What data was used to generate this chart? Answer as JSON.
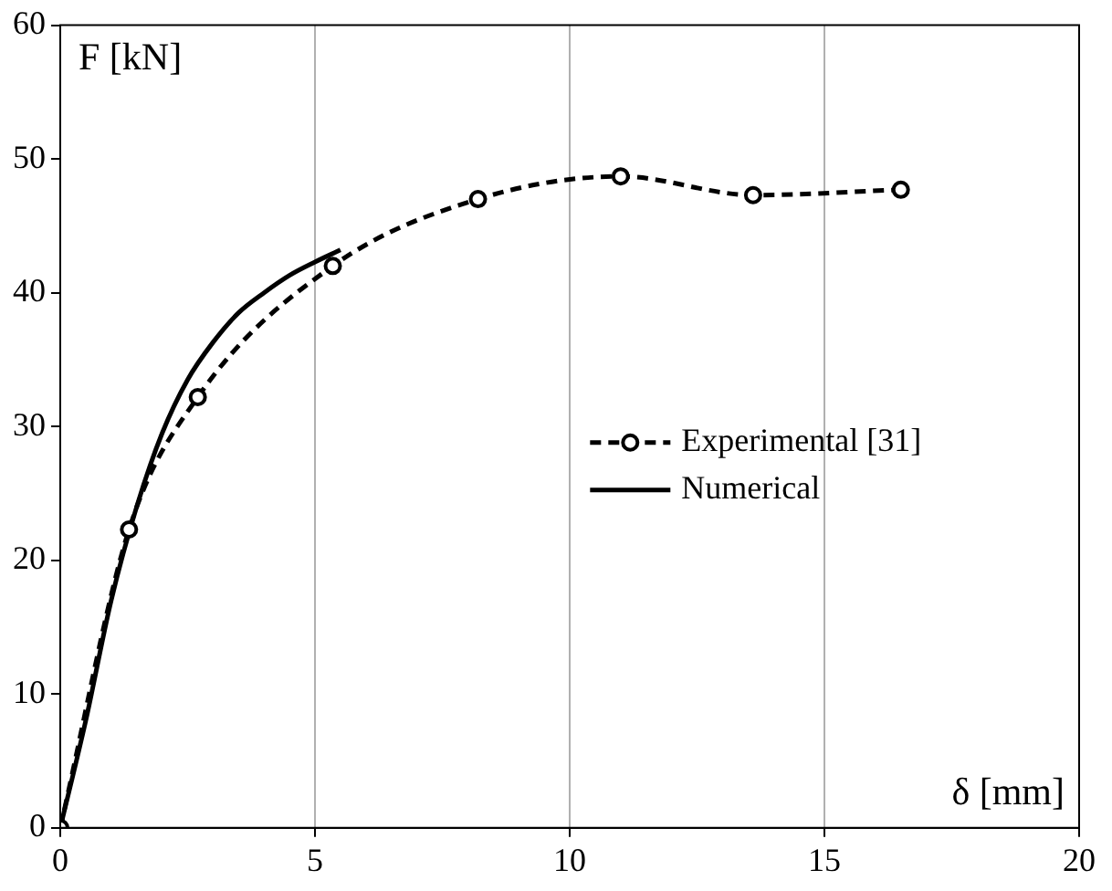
{
  "chart_data": {
    "type": "line",
    "xlabel": "δ [mm]",
    "ylabel": "F [kN]",
    "xlim": [
      0,
      20
    ],
    "xticks": [
      0,
      5,
      10,
      15,
      20
    ],
    "ylim": [
      0,
      60
    ],
    "yticks": [
      0,
      10,
      20,
      30,
      40,
      50,
      60
    ],
    "grid": "x",
    "legend": "right",
    "series": [
      {
        "name": "Experimental [31]",
        "color": "#000000",
        "marker": "circle",
        "line_style": "dashed",
        "x": [
          0,
          1.35,
          2.7,
          5.35,
          8.2,
          11,
          13.6,
          16.5
        ],
        "values": [
          0,
          22.3,
          32.2,
          42,
          47,
          48.7,
          47.3,
          47.7
        ]
      },
      {
        "name": "Numerical",
        "color": "#000000",
        "marker": "none",
        "line_style": "solid",
        "x": [
          0,
          0.5,
          1,
          1.5,
          2,
          2.5,
          3,
          3.5,
          4,
          4.5,
          5,
          5.5
        ],
        "values": [
          0,
          8,
          17,
          24,
          29.5,
          33.5,
          36.3,
          38.5,
          40,
          41.3,
          42.3,
          43.2
        ]
      }
    ]
  }
}
